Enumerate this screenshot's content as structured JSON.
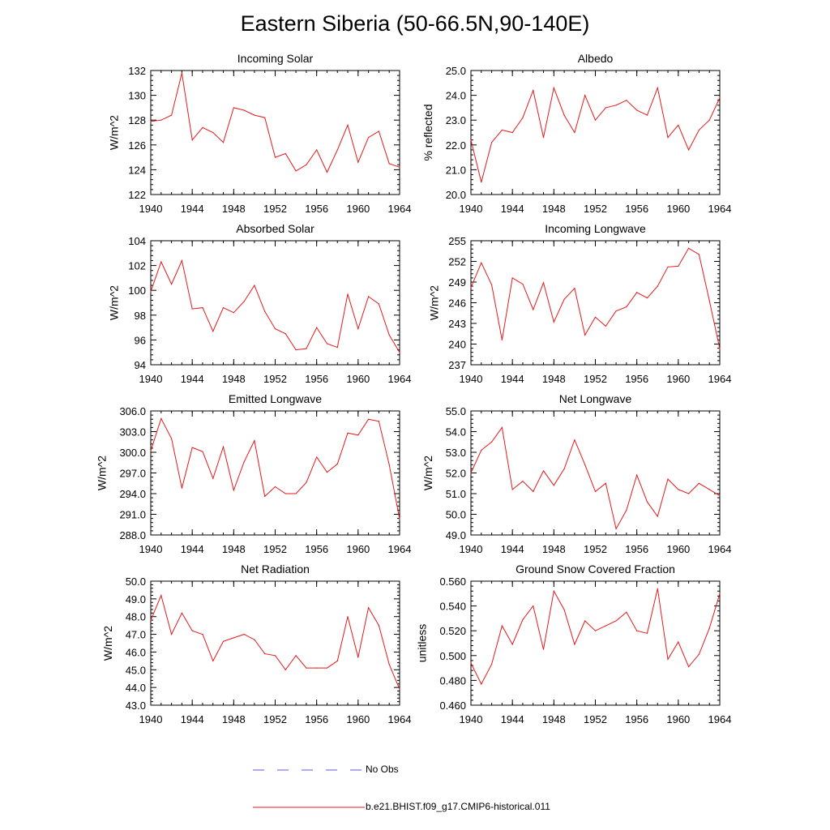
{
  "title": "Eastern Siberia (50-66.5N,90-140E)",
  "colors": {
    "model": "#e31a1c",
    "obs": "#5a5aff",
    "axis": "#000000"
  },
  "legend": {
    "obs_label": "No Obs",
    "model_label": "b.e21.BHIST.f09_g17.CMIP6-historical.011"
  },
  "chart_data": [
    {
      "type": "line",
      "title": "Incoming Solar",
      "ylabel": "W/m^2",
      "xlim": [
        1940,
        1964
      ],
      "ylim": [
        122,
        132
      ],
      "xticks": [
        "1940",
        "1944",
        "1948",
        "1952",
        "1956",
        "1960",
        "1964"
      ],
      "yticks": [
        "122",
        "124",
        "126",
        "128",
        "130",
        "132"
      ],
      "series": [
        {
          "name": "b.e21.BHIST.f09_g17.CMIP6-historical.011",
          "x": [
            1940,
            1941,
            1942,
            1943,
            1944,
            1945,
            1946,
            1947,
            1948,
            1949,
            1950,
            1951,
            1952,
            1953,
            1954,
            1955,
            1956,
            1957,
            1958,
            1959,
            1960,
            1961,
            1962,
            1963,
            1964
          ],
          "values": [
            127.9,
            128.0,
            128.4,
            131.8,
            126.4,
            127.4,
            127.0,
            126.2,
            129.0,
            128.8,
            128.4,
            128.2,
            125.0,
            125.3,
            123.9,
            124.4,
            125.6,
            123.8,
            125.6,
            127.6,
            124.6,
            126.6,
            127.1,
            124.5,
            124.2
          ]
        }
      ]
    },
    {
      "type": "line",
      "title": "Albedo",
      "ylabel": "% reflected",
      "xlim": [
        1940,
        1964
      ],
      "ylim": [
        20.0,
        25.0
      ],
      "xticks": [
        "1940",
        "1944",
        "1948",
        "1952",
        "1956",
        "1960",
        "1964"
      ],
      "yticks": [
        "20.0",
        "21.0",
        "22.0",
        "23.0",
        "24.0",
        "25.0"
      ],
      "series": [
        {
          "name": "b.e21.BHIST.f09_g17.CMIP6-historical.011",
          "x": [
            1940,
            1941,
            1942,
            1943,
            1944,
            1945,
            1946,
            1947,
            1948,
            1949,
            1950,
            1951,
            1952,
            1953,
            1954,
            1955,
            1956,
            1957,
            1958,
            1959,
            1960,
            1961,
            1962,
            1963,
            1964
          ],
          "values": [
            22.2,
            20.5,
            22.1,
            22.6,
            22.5,
            23.1,
            24.2,
            22.3,
            24.3,
            23.2,
            22.5,
            24.0,
            23.0,
            23.5,
            23.6,
            23.8,
            23.4,
            23.2,
            24.3,
            22.3,
            22.8,
            21.8,
            22.6,
            23.0,
            23.9
          ]
        }
      ]
    },
    {
      "type": "line",
      "title": "Absorbed Solar",
      "ylabel": "W/m^2",
      "xlim": [
        1940,
        1964
      ],
      "ylim": [
        94,
        104
      ],
      "xticks": [
        "1940",
        "1944",
        "1948",
        "1952",
        "1956",
        "1960",
        "1964"
      ],
      "yticks": [
        "94",
        "96",
        "98",
        "100",
        "102",
        "104"
      ],
      "series": [
        {
          "name": "b.e21.BHIST.f09_g17.CMIP6-historical.011",
          "x": [
            1940,
            1941,
            1942,
            1943,
            1944,
            1945,
            1946,
            1947,
            1948,
            1949,
            1950,
            1951,
            1952,
            1953,
            1954,
            1955,
            1956,
            1957,
            1958,
            1959,
            1960,
            1961,
            1962,
            1963,
            1964
          ],
          "values": [
            99.9,
            102.3,
            100.5,
            102.4,
            98.5,
            98.6,
            96.7,
            98.6,
            98.2,
            99.1,
            100.4,
            98.3,
            96.9,
            96.5,
            95.2,
            95.3,
            97.0,
            95.7,
            95.4,
            99.7,
            96.9,
            99.5,
            98.9,
            96.4,
            95.0
          ]
        }
      ]
    },
    {
      "type": "line",
      "title": "Incoming Longwave",
      "ylabel": "W/m^2",
      "xlim": [
        1940,
        1964
      ],
      "ylim": [
        237,
        255
      ],
      "xticks": [
        "1940",
        "1944",
        "1948",
        "1952",
        "1956",
        "1960",
        "1964"
      ],
      "yticks": [
        "237",
        "240",
        "243",
        "246",
        "249",
        "252",
        "255"
      ],
      "series": [
        {
          "name": "b.e21.BHIST.f09_g17.CMIP6-historical.011",
          "x": [
            1940,
            1941,
            1942,
            1943,
            1944,
            1945,
            1946,
            1947,
            1948,
            1949,
            1950,
            1951,
            1952,
            1953,
            1954,
            1955,
            1956,
            1957,
            1958,
            1959,
            1960,
            1961,
            1962,
            1963,
            1964
          ],
          "values": [
            248.2,
            251.8,
            248.6,
            240.6,
            249.6,
            248.7,
            245.0,
            248.9,
            243.2,
            246.5,
            248.1,
            241.3,
            243.9,
            242.6,
            244.8,
            245.4,
            247.5,
            246.7,
            248.4,
            251.2,
            251.3,
            253.9,
            253.0,
            246.3,
            239.3
          ]
        }
      ]
    },
    {
      "type": "line",
      "title": "Emitted Longwave",
      "ylabel": "W/m^2",
      "xlim": [
        1940,
        1964
      ],
      "ylim": [
        288.0,
        306.0
      ],
      "xticks": [
        "1940",
        "1944",
        "1948",
        "1952",
        "1956",
        "1960",
        "1964"
      ],
      "yticks": [
        "288.0",
        "291.0",
        "294.0",
        "297.0",
        "300.0",
        "303.0",
        "306.0"
      ],
      "series": [
        {
          "name": "b.e21.BHIST.f09_g17.CMIP6-historical.011",
          "x": [
            1940,
            1941,
            1942,
            1943,
            1944,
            1945,
            1946,
            1947,
            1948,
            1949,
            1950,
            1951,
            1952,
            1953,
            1954,
            1955,
            1956,
            1957,
            1958,
            1959,
            1960,
            1961,
            1962,
            1963,
            1964
          ],
          "values": [
            300.2,
            304.9,
            302.0,
            294.8,
            300.7,
            300.1,
            296.2,
            300.8,
            294.5,
            298.6,
            301.7,
            293.6,
            295.0,
            294.0,
            294.0,
            295.6,
            299.3,
            297.1,
            298.3,
            302.8,
            302.5,
            304.8,
            304.5,
            298.2,
            290.3
          ]
        }
      ]
    },
    {
      "type": "line",
      "title": "Net Longwave",
      "ylabel": "W/m^2",
      "xlim": [
        1940,
        1964
      ],
      "ylim": [
        49.0,
        55.0
      ],
      "xticks": [
        "1940",
        "1944",
        "1948",
        "1952",
        "1956",
        "1960",
        "1964"
      ],
      "yticks": [
        "49.0",
        "50.0",
        "51.0",
        "52.0",
        "53.0",
        "54.0",
        "55.0"
      ],
      "series": [
        {
          "name": "b.e21.BHIST.f09_g17.CMIP6-historical.011",
          "x": [
            1940,
            1941,
            1942,
            1943,
            1944,
            1945,
            1946,
            1947,
            1948,
            1949,
            1950,
            1951,
            1952,
            1953,
            1954,
            1955,
            1956,
            1957,
            1958,
            1959,
            1960,
            1961,
            1962,
            1963,
            1964
          ],
          "values": [
            52.0,
            53.1,
            53.5,
            54.2,
            51.2,
            51.6,
            51.1,
            52.1,
            51.4,
            52.2,
            53.6,
            52.4,
            51.1,
            51.5,
            49.3,
            50.2,
            51.9,
            50.6,
            49.9,
            51.7,
            51.2,
            51.0,
            51.5,
            51.2,
            50.9
          ]
        }
      ]
    },
    {
      "type": "line",
      "title": "Net Radiation",
      "ylabel": "W/m^2",
      "xlim": [
        1940,
        1964
      ],
      "ylim": [
        43.0,
        50.0
      ],
      "xticks": [
        "1940",
        "1944",
        "1948",
        "1952",
        "1956",
        "1960",
        "1964"
      ],
      "yticks": [
        "43.0",
        "44.0",
        "45.0",
        "46.0",
        "47.0",
        "48.0",
        "49.0",
        "50.0"
      ],
      "series": [
        {
          "name": "b.e21.BHIST.f09_g17.CMIP6-historical.011",
          "x": [
            1940,
            1941,
            1942,
            1943,
            1944,
            1945,
            1946,
            1947,
            1948,
            1949,
            1950,
            1951,
            1952,
            1953,
            1954,
            1955,
            1956,
            1957,
            1958,
            1959,
            1960,
            1961,
            1962,
            1963,
            1964
          ],
          "values": [
            47.8,
            49.2,
            47.0,
            48.2,
            47.2,
            47.0,
            45.5,
            46.6,
            46.8,
            47.0,
            46.7,
            45.9,
            45.8,
            45.0,
            45.8,
            45.1,
            45.1,
            45.1,
            45.5,
            48.0,
            45.7,
            48.5,
            47.5,
            45.3,
            43.9
          ]
        }
      ]
    },
    {
      "type": "line",
      "title": "Ground Snow Covered Fraction",
      "ylabel": "unitless",
      "xlim": [
        1940,
        1964
      ],
      "ylim": [
        0.46,
        0.56
      ],
      "xticks": [
        "1940",
        "1944",
        "1948",
        "1952",
        "1956",
        "1960",
        "1964"
      ],
      "yticks": [
        "0.460",
        "0.480",
        "0.500",
        "0.520",
        "0.540",
        "0.560"
      ],
      "series": [
        {
          "name": "b.e21.BHIST.f09_g17.CMIP6-historical.011",
          "x": [
            1940,
            1941,
            1942,
            1943,
            1944,
            1945,
            1946,
            1947,
            1948,
            1949,
            1950,
            1951,
            1952,
            1953,
            1954,
            1955,
            1956,
            1957,
            1958,
            1959,
            1960,
            1961,
            1962,
            1963,
            1964
          ],
          "values": [
            0.494,
            0.477,
            0.493,
            0.524,
            0.509,
            0.529,
            0.54,
            0.505,
            0.552,
            0.537,
            0.509,
            0.528,
            0.52,
            0.524,
            0.528,
            0.535,
            0.52,
            0.518,
            0.554,
            0.497,
            0.511,
            0.491,
            0.501,
            0.522,
            0.55
          ]
        }
      ]
    }
  ]
}
